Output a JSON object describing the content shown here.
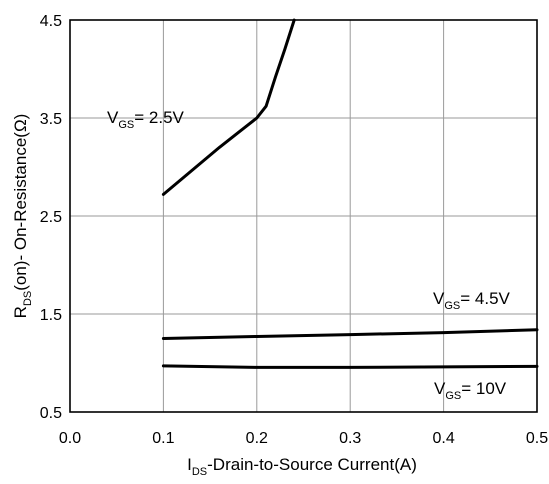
{
  "chart_data": {
    "type": "line",
    "xlabel": {
      "main": "I",
      "sub": "DS",
      "rest": "-Drain-to-Source  Current(A)"
    },
    "ylabel": {
      "main": "R",
      "sub": "DS",
      "rest": "(on)- On-Resistance(Ω)"
    },
    "xlim": [
      0.0,
      0.5
    ],
    "ylim": [
      0.5,
      4.5
    ],
    "xticks": [
      "0.0",
      "0.1",
      "0.2",
      "0.3",
      "0.4",
      "0.5"
    ],
    "yticks": [
      "0.5",
      "1.5",
      "2.5",
      "3.5",
      "4.5"
    ],
    "grid": true,
    "series": [
      {
        "name": "VGS= 2.5V",
        "label": {
          "main": "V",
          "sub": "GS",
          "rest": "= 2.5V"
        },
        "x": [
          0.1,
          0.13,
          0.16,
          0.18,
          0.2,
          0.21,
          0.22,
          0.23,
          0.24
        ],
        "y": [
          2.72,
          2.96,
          3.2,
          3.35,
          3.5,
          3.62,
          3.92,
          4.2,
          4.5
        ]
      },
      {
        "name": "VGS= 4.5V",
        "label": {
          "main": "V",
          "sub": "GS",
          "rest": "= 4.5V"
        },
        "x": [
          0.1,
          0.2,
          0.3,
          0.4,
          0.5
        ],
        "y": [
          1.25,
          1.27,
          1.29,
          1.31,
          1.34
        ]
      },
      {
        "name": "VGS= 10V",
        "label": {
          "main": "V",
          "sub": "GS",
          "rest": "= 10V"
        },
        "x": [
          0.1,
          0.2,
          0.3,
          0.4,
          0.5
        ],
        "y": [
          0.97,
          0.955,
          0.955,
          0.96,
          0.965
        ]
      }
    ]
  }
}
